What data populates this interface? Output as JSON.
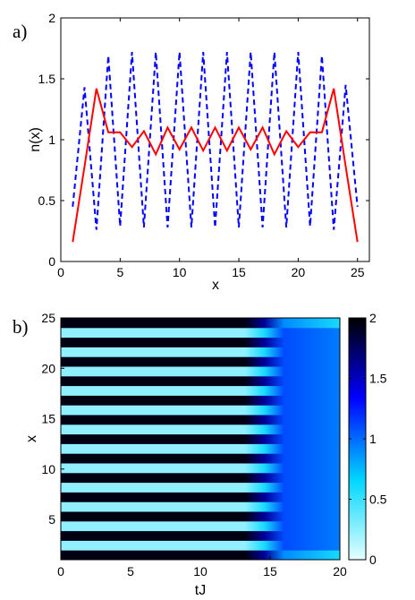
{
  "chart_data": [
    {
      "type": "line",
      "panel_label": "a)",
      "xlabel": "x",
      "ylabel": "n(x)",
      "xlim": [
        0,
        26
      ],
      "ylim": [
        0,
        2
      ],
      "xticks": [
        0,
        5,
        10,
        15,
        20,
        25
      ],
      "yticks": [
        0,
        0.5,
        1,
        1.5,
        2
      ],
      "ytick_labels": [
        "0",
        "0.5",
        "1",
        "1.5",
        "2"
      ],
      "grid": false,
      "series": [
        {
          "color": "#0000ff",
          "style": "dashed",
          "x": [
            1,
            2,
            3,
            4,
            5,
            6,
            7,
            8,
            9,
            10,
            11,
            12,
            13,
            14,
            15,
            16,
            17,
            18,
            19,
            20,
            21,
            22,
            23,
            24,
            25
          ],
          "y": [
            0.45,
            1.43,
            0.26,
            1.69,
            0.29,
            1.72,
            0.28,
            1.72,
            0.28,
            1.72,
            0.28,
            1.72,
            0.28,
            1.72,
            0.28,
            1.72,
            0.28,
            1.72,
            0.28,
            1.72,
            0.29,
            1.69,
            0.26,
            1.45,
            0.45
          ]
        },
        {
          "color": "#ff0000",
          "style": "solid",
          "x": [
            1,
            2,
            3,
            4,
            5,
            6,
            7,
            8,
            9,
            10,
            11,
            12,
            13,
            14,
            15,
            16,
            17,
            18,
            19,
            20,
            21,
            22,
            23,
            24,
            25
          ],
          "y": [
            0.16,
            0.78,
            1.42,
            1.06,
            1.06,
            0.94,
            1.07,
            0.88,
            1.1,
            0.92,
            1.1,
            0.91,
            1.1,
            0.91,
            1.1,
            0.92,
            1.1,
            0.88,
            1.07,
            0.94,
            1.06,
            1.06,
            1.42,
            0.78,
            0.16
          ]
        }
      ]
    },
    {
      "type": "heatmap",
      "panel_label": "b)",
      "xlabel": "tJ",
      "ylabel": "x",
      "xlim": [
        0,
        20
      ],
      "ylim": [
        1,
        25
      ],
      "xticks": [
        0,
        5,
        10,
        15,
        20
      ],
      "yticks": [
        5,
        10,
        15,
        20,
        25
      ],
      "colorbar": {
        "min": 0,
        "max": 2,
        "ticks": [
          0,
          0.5,
          1,
          1.5,
          2
        ],
        "tick_labels": [
          "0",
          "0.5",
          "1",
          "1.5",
          "2"
        ],
        "colors": [
          "#e6ffff",
          "#00d7ff",
          "#0000ff",
          "#000000"
        ]
      },
      "rows": 25,
      "stripe_pattern": "alternating density per site: odd sites high (~1.7-2.0), even sites low (~0.2-0.3) for tJ < 14; homogenizes toward ~1 after tJ ≈ 15"
    }
  ]
}
